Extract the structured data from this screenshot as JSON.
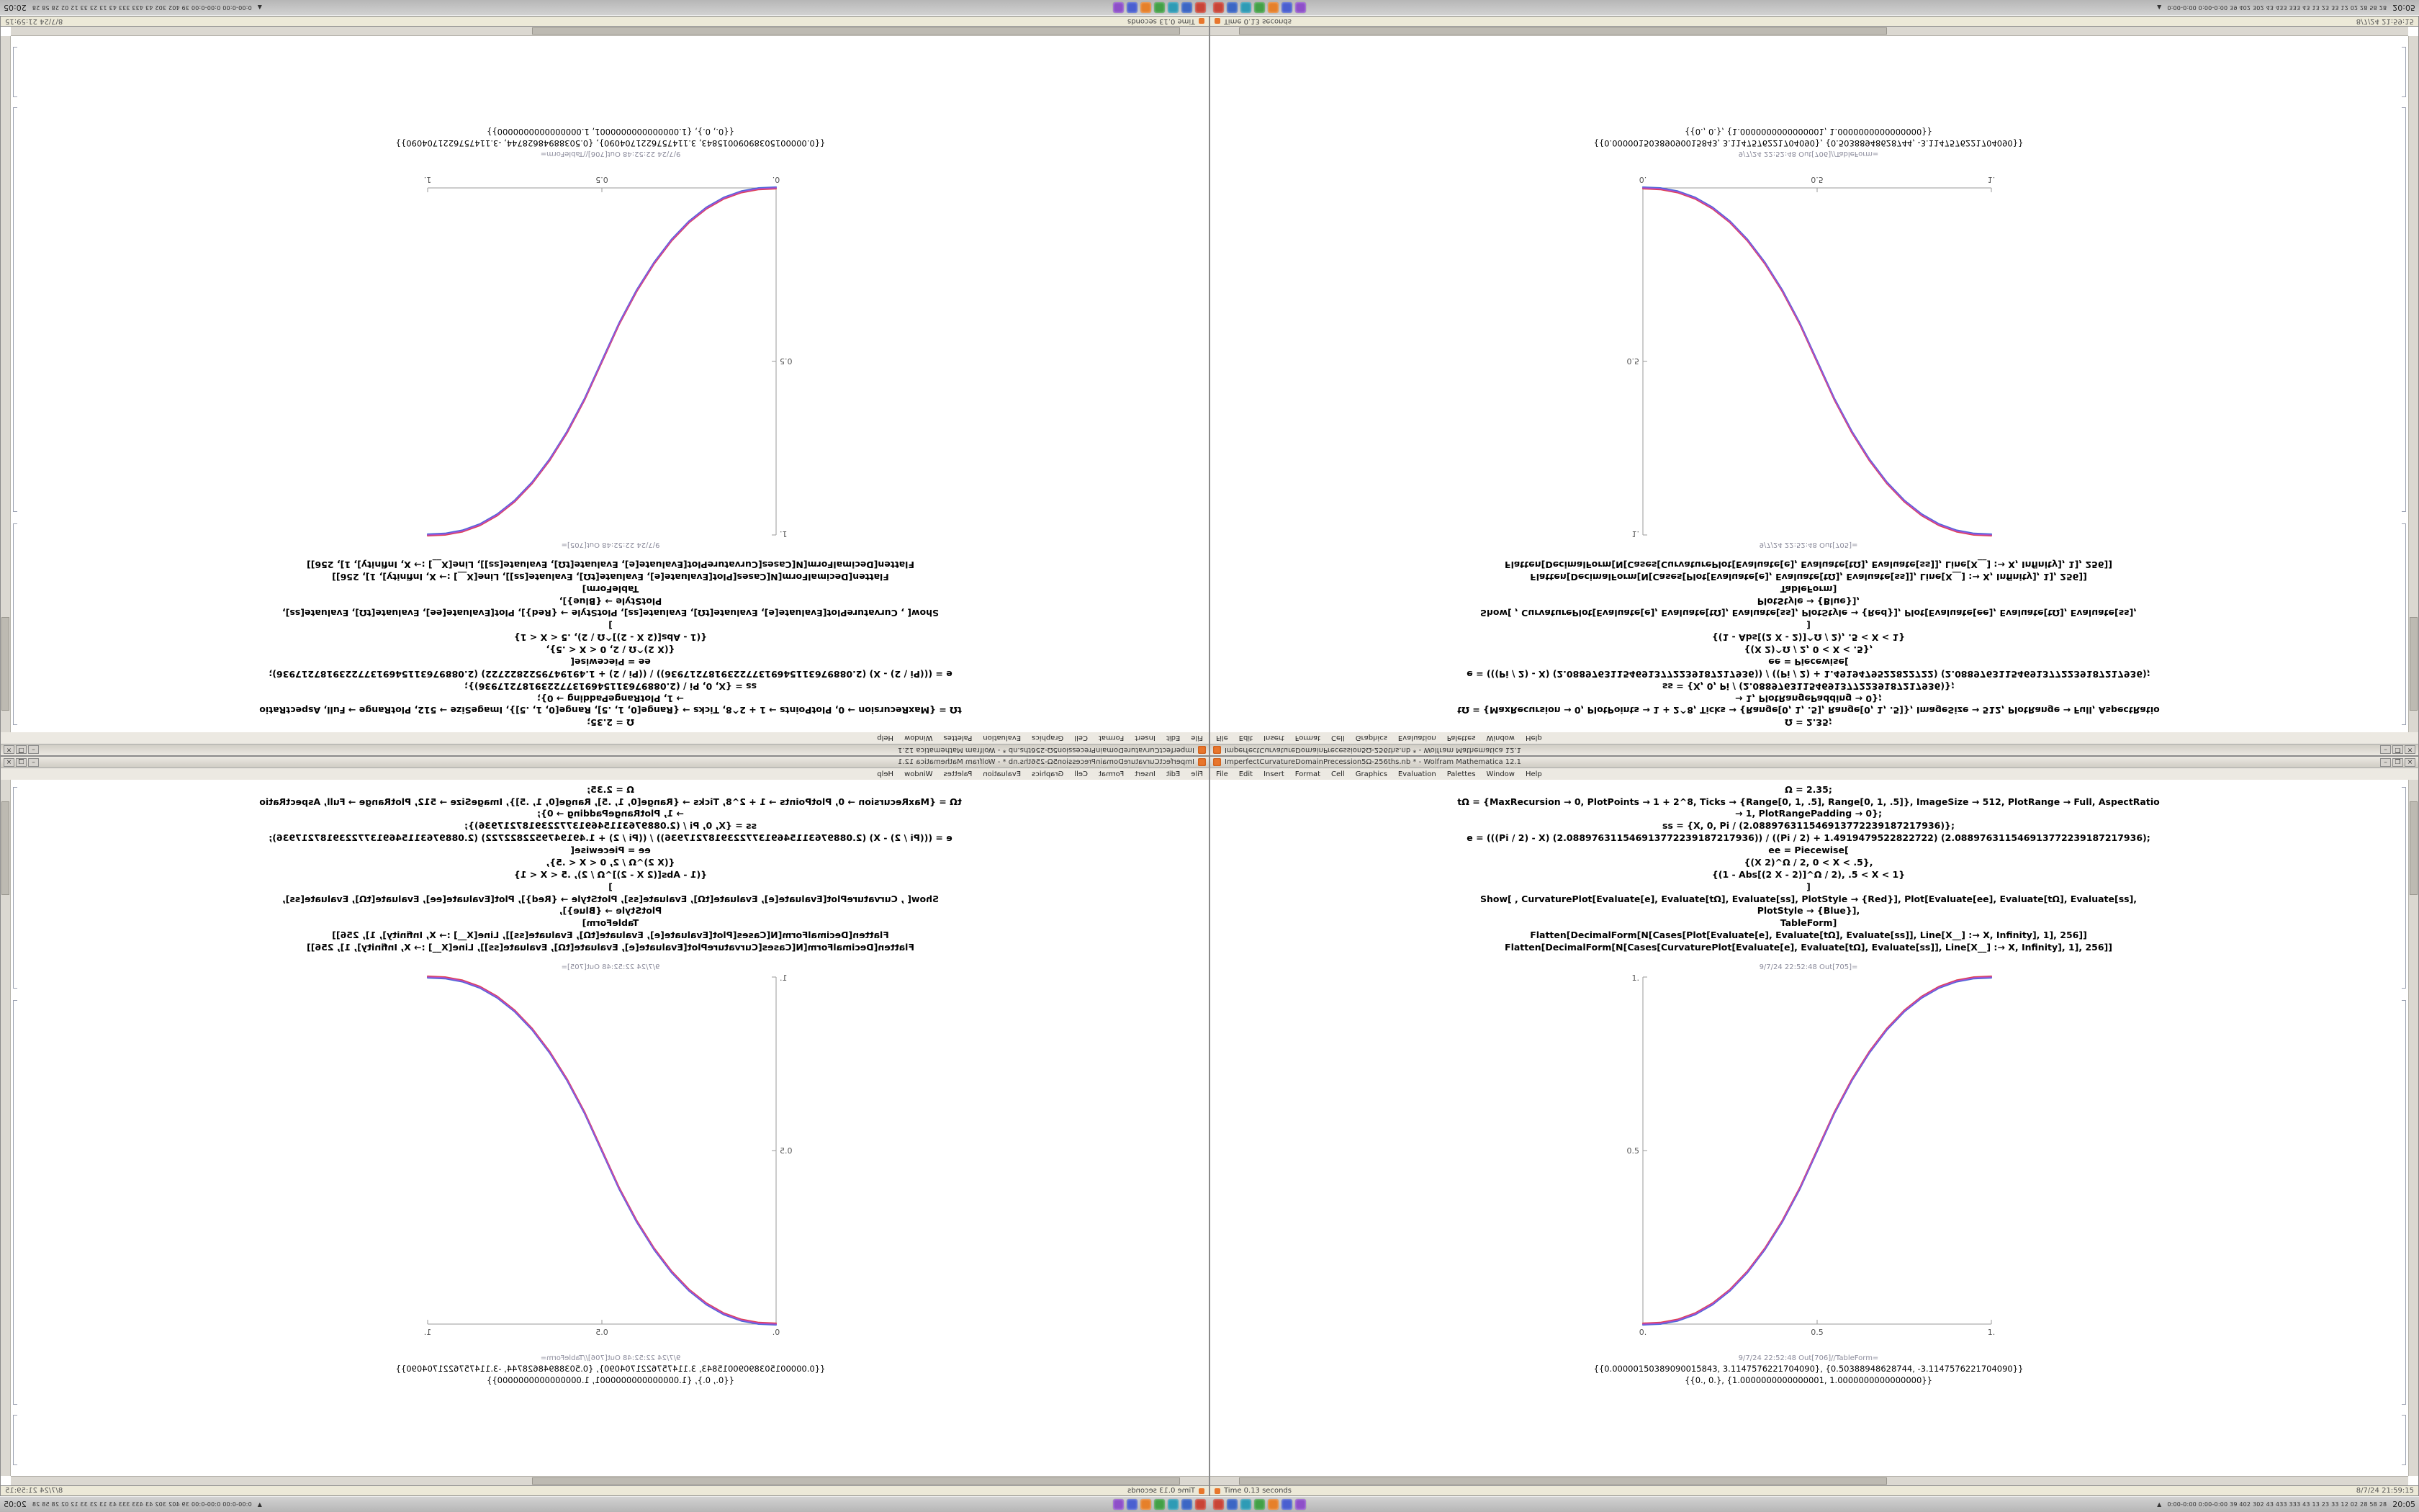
{
  "meta": {
    "app": "Wolfram Mathematica 12.1"
  },
  "window": {
    "title": "ImperfectCurvatureDomainPrecession5Ω-256ths.nb * - Wolfram Mathematica 12.1",
    "controls": {
      "minimize": "–",
      "maximize": "❐",
      "close": "×"
    },
    "menu": [
      "File",
      "Edit",
      "Insert",
      "Format",
      "Cell",
      "Graphics",
      "Evaluation",
      "Palettes",
      "Window",
      "Help"
    ],
    "status": {
      "left": "Time 0.13 seconds",
      "right": "8/7/24 21:59:15"
    }
  },
  "notebook": {
    "input_cells": [
      "Ω = 2.35;",
      "tΩ = {MaxRecursion → 0, PlotPoints → 1 + 2^8, Ticks → {Range[0, 1, .5], Range[0, 1, .5]}, ImageSize → 512, PlotRange → Full, AspectRatio → 1, PlotRangePadding → 0};",
      "ss = {X, 0, Pi / (2.088976311546913772239187217936)};",
      "e = (((Pi / 2) - X) (2.088976311546913772239187217936)) / ((Pi / 2) + 1.4919479522822722) (2.088976311546913772239187217936);",
      "ee = Piecewise[",
      "{(X 2)^Ω / 2, 0 < X < .5},",
      "{(1 - Abs[(2 X - 2)]^Ω / 2), .5 < X < 1}",
      "]",
      "Show[ , CurvaturePlot[Evaluate[e], Evaluate[tΩ], Evaluate[ss], PlotStyle → {Red}], Plot[Evaluate[ee], Evaluate[tΩ], Evaluate[ss], PlotStyle → {Blue}],",
      "TableForm]",
      "Flatten[DecimalForm[N[Cases[Plot[Evaluate[e], Evaluate[tΩ], Evaluate[ss]], Line[X__] :→ X, Infinity], 1], 256]]",
      "Flatten[DecimalForm[N[Cases[CurvaturePlot[Evaluate[e], Evaluate[tΩ], Evaluate[ss]], Line[X__] :→ X, Infinity], 1], 256]]"
    ],
    "out1_label": "9/7/24 22:52:48 Out[705]=",
    "out2_label": "9/7/24 22:52:48 Out[706]//TableForm=",
    "out2_lines": [
      "{{0.00000150389090015843, 3.1147576221704090}, {0.50388948628744, -3.1147576221704090}}",
      "{{0., 0.}, {1.0000000000000001, 1.0000000000000000}}"
    ]
  },
  "chart_data": {
    "type": "line",
    "title": "",
    "xlabel": "",
    "ylabel": "",
    "xlim": [
      0,
      1
    ],
    "ylim": [
      0,
      1
    ],
    "grid": false,
    "legend": "none",
    "x_tick_labels": [
      "0.",
      "0.5",
      "1."
    ],
    "y_tick_labels": [
      "0.5",
      "1."
    ],
    "blend_color": "#a94fd0",
    "series": [
      {
        "name": "CurvaturePlot (Red)",
        "color": "#e04050"
      },
      {
        "name": "Plot (Blue)",
        "color": "#4868d8"
      }
    ],
    "points": [
      [
        0,
        0
      ],
      [
        0.05,
        0.0022
      ],
      [
        0.1,
        0.0114
      ],
      [
        0.15,
        0.0295
      ],
      [
        0.2,
        0.058
      ],
      [
        0.25,
        0.098
      ],
      [
        0.3,
        0.1505
      ],
      [
        0.35,
        0.2163
      ],
      [
        0.4,
        0.296
      ],
      [
        0.45,
        0.3903
      ],
      [
        0.5,
        0.5
      ],
      [
        0.55,
        0.6097
      ],
      [
        0.6,
        0.704
      ],
      [
        0.65,
        0.7837
      ],
      [
        0.7,
        0.8495
      ],
      [
        0.75,
        0.902
      ],
      [
        0.8,
        0.942
      ],
      [
        0.85,
        0.9705
      ],
      [
        0.9,
        0.9886
      ],
      [
        0.95,
        0.9978
      ],
      [
        1,
        1
      ]
    ]
  },
  "taskbar": {
    "apps": [
      {
        "color": "#c94437"
      },
      {
        "color": "#3b66c4"
      },
      {
        "color": "#2e9bb5"
      },
      {
        "color": "#43a047"
      },
      {
        "color": "#e6802a"
      },
      {
        "color": "#4a5fd0"
      },
      {
        "color": "#8e4fc9"
      }
    ],
    "tray_arrow": "▲",
    "tray_stats": "0:00-0:00 0:00-0:00 39 402 302 43 433 333 43 13 23 33 12 02 28 58 28",
    "clock": "20:05"
  }
}
